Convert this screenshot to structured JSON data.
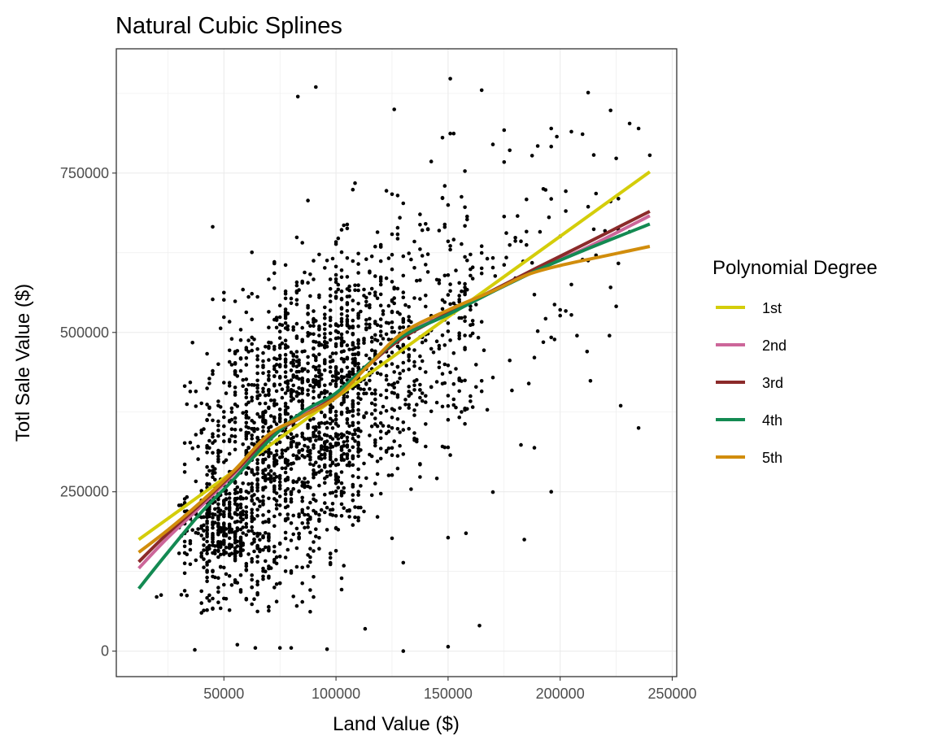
{
  "chart_data": {
    "type": "scatter",
    "title": "Natural Cubic Splines",
    "xlabel": "Land Value ($)",
    "ylabel": "Totl Sale Value ($)",
    "xlim": [
      2000,
      252000
    ],
    "ylim": [
      -40000,
      945000
    ],
    "x_ticks": [
      50000,
      100000,
      150000,
      200000,
      250000
    ],
    "x_tick_labels": [
      "50000",
      "100000",
      "150000",
      "200000",
      "250000"
    ],
    "y_ticks": [
      0,
      250000,
      500000,
      750000
    ],
    "y_tick_labels": [
      "0",
      "250000",
      "500000",
      "750000"
    ],
    "grid": true,
    "legend": {
      "title": "Polynomial Degree",
      "position": "right"
    },
    "scatter": {
      "name": "observations",
      "color": "#000000",
      "count": 2400,
      "sample_points": [
        [
          37000,
          2000
        ],
        [
          56000,
          10000
        ],
        [
          64000,
          5000
        ],
        [
          75000,
          5000
        ],
        [
          80000,
          5000
        ],
        [
          96000,
          3000
        ],
        [
          130000,
          0
        ],
        [
          150000,
          7000
        ],
        [
          164000,
          40000
        ],
        [
          113000,
          35000
        ],
        [
          20000,
          85000
        ],
        [
          22000,
          88000
        ],
        [
          40000,
          60000
        ],
        [
          83000,
          870000
        ],
        [
          91000,
          885000
        ],
        [
          126000,
          850000
        ],
        [
          151000,
          898000
        ],
        [
          165000,
          880000
        ],
        [
          235000,
          820000
        ],
        [
          240000,
          778000
        ],
        [
          227000,
          385000
        ],
        [
          235000,
          350000
        ],
        [
          196000,
          250000
        ],
        [
          184000,
          175000
        ],
        [
          158000,
          185000
        ],
        [
          212000,
          470000
        ],
        [
          222000,
          495000
        ],
        [
          170000,
          795000
        ],
        [
          196000,
          820000
        ],
        [
          205000,
          815000
        ]
      ]
    },
    "series": [
      {
        "name": "1st",
        "color": "#d4cd0a",
        "x": [
          12000,
          240000
        ],
        "y": [
          175000,
          752000
        ]
      },
      {
        "name": "2nd",
        "color": "#cc6699",
        "x": [
          12000,
          25000,
          40000,
          55000,
          70000,
          85000,
          100000,
          115000,
          130000,
          150000,
          170000,
          190000,
          210000,
          240000
        ],
        "y": [
          130000,
          178000,
          228000,
          280000,
          335000,
          370000,
          400000,
          450000,
          495000,
          530000,
          565000,
          600000,
          630000,
          683000
        ]
      },
      {
        "name": "3rd",
        "color": "#8b2a2a",
        "x": [
          12000,
          25000,
          40000,
          55000,
          70000,
          85000,
          100000,
          115000,
          130000,
          150000,
          170000,
          190000,
          210000,
          240000
        ],
        "y": [
          140000,
          185000,
          232000,
          282000,
          335000,
          368000,
          400000,
          450000,
          492000,
          530000,
          566000,
          602000,
          637000,
          690000
        ]
      },
      {
        "name": "4th",
        "color": "#138a52",
        "x": [
          12000,
          25000,
          40000,
          55000,
          70000,
          85000,
          100000,
          115000,
          130000,
          150000,
          170000,
          190000,
          210000,
          240000
        ],
        "y": [
          98000,
          155000,
          218000,
          272000,
          330000,
          375000,
          405000,
          452000,
          495000,
          528000,
          564000,
          598000,
          628000,
          670000
        ]
      },
      {
        "name": "5th",
        "color": "#d18d0c",
        "x": [
          12000,
          25000,
          40000,
          55000,
          70000,
          85000,
          100000,
          115000,
          130000,
          150000,
          170000,
          185000,
          200000,
          220000,
          240000
        ],
        "y": [
          155000,
          190000,
          235000,
          285000,
          340000,
          368000,
          398000,
          450000,
          500000,
          535000,
          565000,
          590000,
          605000,
          620000,
          635000
        ]
      }
    ]
  }
}
